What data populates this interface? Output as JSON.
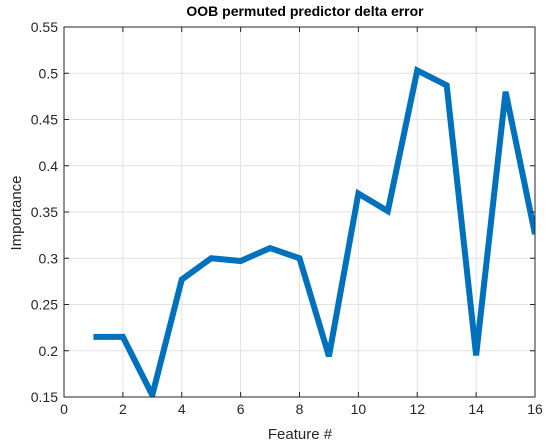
{
  "chart_data": {
    "type": "line",
    "title": "OOB permuted predictor delta error",
    "xlabel": "Feature #",
    "ylabel": "Importance",
    "xlim": [
      0,
      16
    ],
    "ylim": [
      0.15,
      0.55
    ],
    "xticks": [
      "0",
      "2",
      "4",
      "6",
      "8",
      "10",
      "12",
      "14",
      "16"
    ],
    "yticks": [
      "0.15",
      "0.2",
      "0.25",
      "0.3",
      "0.35",
      "0.4",
      "0.45",
      "0.5",
      "0.55"
    ],
    "grid": true,
    "line_color": "#0072BD",
    "series": [
      {
        "x": [
          1,
          2,
          3,
          4,
          5,
          6,
          7,
          8,
          9,
          10,
          11,
          12,
          13,
          14,
          15,
          16
        ],
        "values": [
          0.215,
          0.215,
          0.152,
          0.277,
          0.3,
          0.297,
          0.311,
          0.3,
          0.194,
          0.37,
          0.351,
          0.503,
          0.487,
          0.195,
          0.48,
          0.326
        ]
      }
    ]
  }
}
